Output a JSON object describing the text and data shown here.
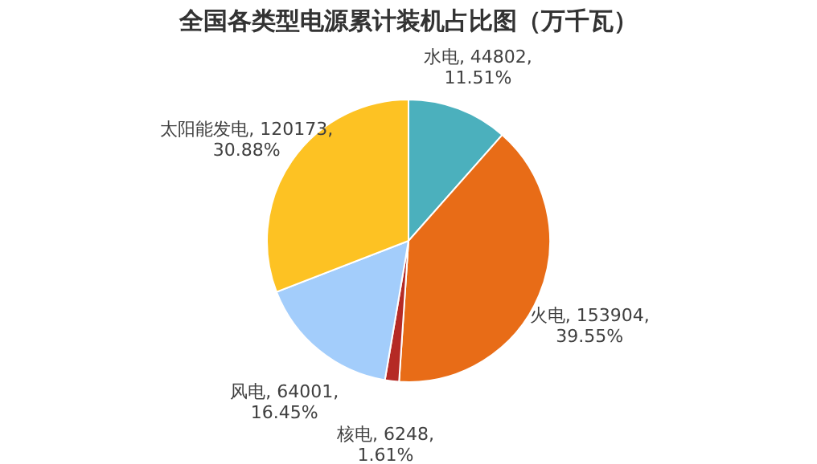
{
  "chart_data": {
    "type": "pie",
    "title": "全国各类型电源累计装机占比图（万千瓦）",
    "categories": [
      "水电",
      "火电",
      "核电",
      "风电",
      "太阳能发电"
    ],
    "values": [
      44802,
      153904,
      6248,
      64001,
      120173
    ],
    "colors": [
      "#4bb0bd",
      "#e86c17",
      "#b52a25",
      "#a3cdfb",
      "#fdc223"
    ],
    "value_labels": [
      "44802, 11.51%",
      "153904, 39.55%",
      "6248, 1.61%",
      "64001, 16.45%",
      "120173, 30.88%"
    ],
    "legend": false
  }
}
